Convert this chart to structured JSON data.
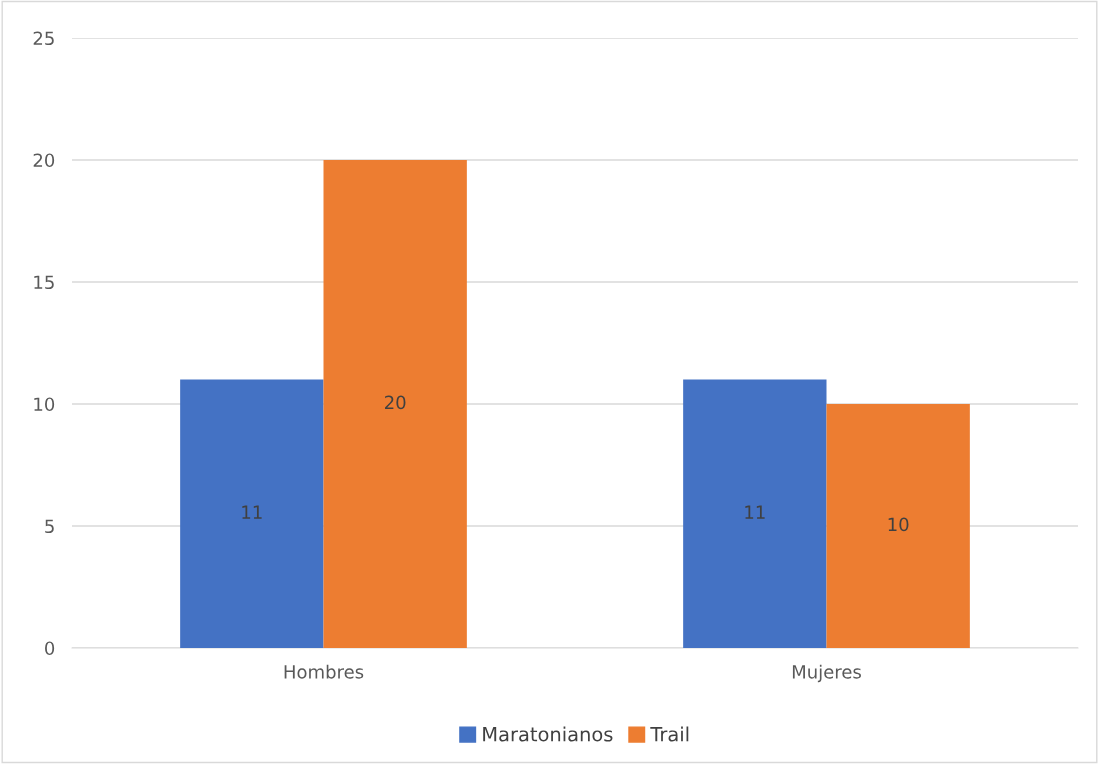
{
  "chart_data": {
    "type": "bar",
    "categories": [
      "Hombres",
      "Mujeres"
    ],
    "series": [
      {
        "name": "Maratonianos",
        "color": "#4472c4",
        "values": [
          11,
          11
        ]
      },
      {
        "name": "Trail",
        "color": "#ed7d31",
        "values": [
          20,
          10
        ]
      }
    ],
    "ylim": [
      0,
      25
    ],
    "yticks": [
      0,
      5,
      10,
      15,
      20,
      25
    ],
    "grid": "y",
    "legend": "bottom",
    "data_labels": true
  }
}
